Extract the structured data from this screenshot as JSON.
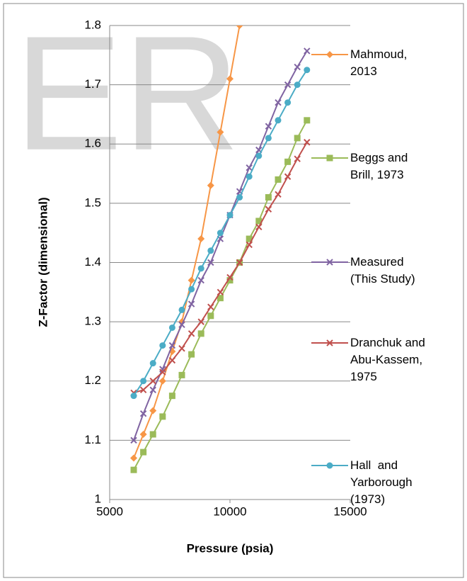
{
  "watermark": "ER",
  "chart_data": {
    "type": "line",
    "x_label": "Pressure (psia)",
    "y_label": "Z-Factor (dimensional)",
    "x": [
      6000,
      6400,
      6800,
      7200,
      7600,
      8000,
      8400,
      8800,
      9200,
      9600,
      10000,
      10400,
      10800,
      11200,
      11600,
      12000,
      12400,
      12800,
      13200
    ],
    "series": [
      {
        "name": "Mahmoud, 2013",
        "color": "#f79646",
        "marker": "diamond",
        "values": [
          1.07,
          1.11,
          1.15,
          1.2,
          1.25,
          1.3,
          1.37,
          1.44,
          1.53,
          1.62,
          1.71,
          1.8,
          null,
          null,
          null,
          null,
          null,
          null,
          null
        ]
      },
      {
        "name": "Beggs and Brill, 1973",
        "color": "#9bbb59",
        "marker": "square",
        "values": [
          1.05,
          1.08,
          1.11,
          1.14,
          1.175,
          1.21,
          1.245,
          1.28,
          1.31,
          1.34,
          1.37,
          1.4,
          1.44,
          1.47,
          1.51,
          1.54,
          1.57,
          1.61,
          1.64
        ]
      },
      {
        "name": "Measured (This Study)",
        "color": "#8064a2",
        "marker": "x",
        "values": [
          1.1,
          1.145,
          1.185,
          1.22,
          1.26,
          1.295,
          1.33,
          1.37,
          1.4,
          1.44,
          1.48,
          1.52,
          1.56,
          1.59,
          1.63,
          1.67,
          1.7,
          1.73,
          1.757
        ]
      },
      {
        "name": "Dranchuk and Abu-Kassem, 1975",
        "color": "#c0504d",
        "marker": "x",
        "values": [
          1.18,
          1.185,
          1.2,
          1.215,
          1.235,
          1.255,
          1.28,
          1.3,
          1.325,
          1.35,
          1.375,
          1.4,
          1.43,
          1.46,
          1.49,
          1.515,
          1.545,
          1.575,
          1.603
        ]
      },
      {
        "name": "Hall  and Yarborough (1973)",
        "color": "#4bacc6",
        "marker": "circle",
        "values": [
          1.175,
          1.2,
          1.23,
          1.26,
          1.29,
          1.32,
          1.355,
          1.39,
          1.42,
          1.45,
          1.48,
          1.51,
          1.545,
          1.58,
          1.61,
          1.64,
          1.67,
          1.7,
          1.725
        ]
      }
    ],
    "xlim": [
      5000,
      15000
    ],
    "xticks": [
      5000,
      10000,
      15000
    ],
    "ylim": [
      1,
      1.8
    ],
    "yticks": [
      1,
      1.1,
      1.2,
      1.3,
      1.4,
      1.5,
      1.6,
      1.7,
      1.8
    ],
    "grid": true,
    "legend": "right"
  }
}
